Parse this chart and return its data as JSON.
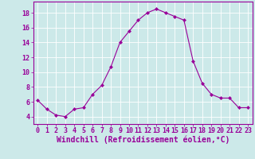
{
  "x": [
    0,
    1,
    2,
    3,
    4,
    5,
    6,
    7,
    8,
    9,
    10,
    11,
    12,
    13,
    14,
    15,
    16,
    17,
    18,
    19,
    20,
    21,
    22,
    23
  ],
  "y": [
    6.2,
    5.0,
    4.2,
    4.0,
    5.0,
    5.2,
    7.0,
    8.2,
    10.7,
    14.0,
    15.5,
    17.0,
    18.0,
    18.5,
    18.0,
    17.5,
    17.0,
    11.5,
    8.5,
    7.0,
    6.5,
    6.5,
    5.2,
    5.2
  ],
  "line_color": "#990099",
  "marker": "D",
  "marker_size": 2,
  "background_color": "#cce9e9",
  "grid_color": "#ffffff",
  "xlabel": "Windchill (Refroidissement éolien,°C)",
  "ylabel": "",
  "xlim": [
    -0.5,
    23.5
  ],
  "ylim": [
    3,
    19.5
  ],
  "yticks": [
    4,
    6,
    8,
    10,
    12,
    14,
    16,
    18
  ],
  "xticks": [
    0,
    1,
    2,
    3,
    4,
    5,
    6,
    7,
    8,
    9,
    10,
    11,
    12,
    13,
    14,
    15,
    16,
    17,
    18,
    19,
    20,
    21,
    22,
    23
  ],
  "tick_color": "#990099",
  "label_color": "#990099",
  "tick_fontsize": 6,
  "xlabel_fontsize": 7
}
